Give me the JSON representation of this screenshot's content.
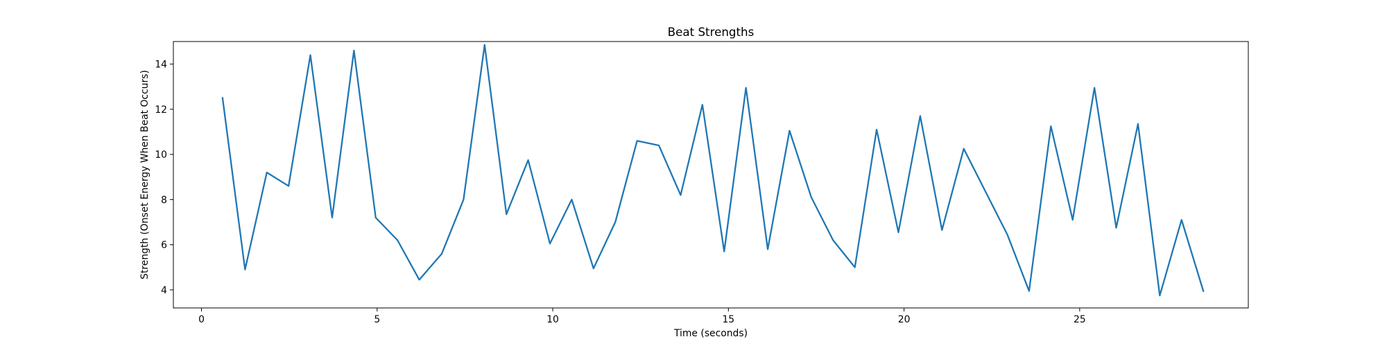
{
  "chart_data": {
    "type": "line",
    "title": "Beat Strengths",
    "xlabel": "Time (seconds)",
    "ylabel": "Strength (Onset Energy When Beat Occurs)",
    "xlim": [
      -0.8,
      29.8
    ],
    "ylim": [
      3.2,
      15.0
    ],
    "xticks": [
      0,
      5,
      10,
      15,
      20,
      25
    ],
    "yticks": [
      4,
      6,
      8,
      10,
      12,
      14
    ],
    "grid": false,
    "series": [
      {
        "color": "#1f77b4",
        "x": [
          0.6,
          1.24,
          1.86,
          2.48,
          3.1,
          3.72,
          4.34,
          4.96,
          5.58,
          6.2,
          6.84,
          7.46,
          8.06,
          8.68,
          9.3,
          9.92,
          10.54,
          11.16,
          11.78,
          12.4,
          13.02,
          13.64,
          14.26,
          14.88,
          15.5,
          16.12,
          16.74,
          17.36,
          17.98,
          18.6,
          19.22,
          19.84,
          20.46,
          21.08,
          21.7,
          22.32,
          22.94,
          23.56,
          24.18,
          24.8,
          25.42,
          26.04,
          26.66,
          27.28,
          27.9,
          28.52
        ],
        "y": [
          12.5,
          4.9,
          9.2,
          8.6,
          14.4,
          7.2,
          14.6,
          7.2,
          6.2,
          4.45,
          5.6,
          8.0,
          14.85,
          7.35,
          9.75,
          6.05,
          8.0,
          4.95,
          7.0,
          10.6,
          10.4,
          8.2,
          12.2,
          5.7,
          12.95,
          5.8,
          11.05,
          8.1,
          6.2,
          5.0,
          11.1,
          6.55,
          11.7,
          6.65,
          10.25,
          8.35,
          6.45,
          3.95,
          11.25,
          7.1,
          12.95,
          6.75,
          11.35,
          3.75,
          7.1,
          3.95
        ]
      }
    ]
  }
}
